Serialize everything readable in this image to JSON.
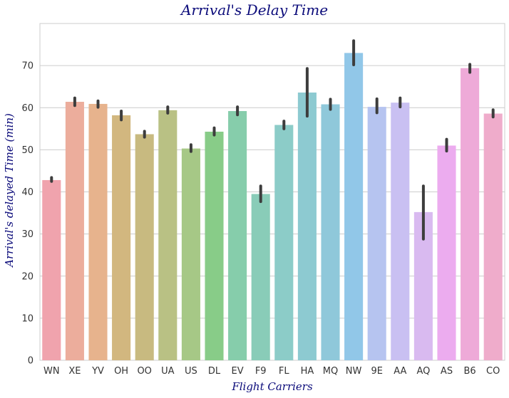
{
  "chart_data": {
    "type": "bar",
    "title": "Arrival's Delay Time",
    "xlabel": "Flight Carriers",
    "ylabel": "Arrival's delayed Time (min)",
    "ylim": [
      0,
      80
    ],
    "yticks": [
      0,
      10,
      20,
      30,
      40,
      50,
      60,
      70
    ],
    "grid": "horizontal",
    "categories": [
      "WN",
      "XE",
      "YV",
      "OH",
      "OO",
      "UA",
      "US",
      "DL",
      "EV",
      "F9",
      "FL",
      "HA",
      "MQ",
      "NW",
      "9E",
      "AA",
      "AQ",
      "AS",
      "B6",
      "CO"
    ],
    "values": [
      42.8,
      61.4,
      60.9,
      58.2,
      53.7,
      59.4,
      50.3,
      54.3,
      59.2,
      39.5,
      55.9,
      63.6,
      60.8,
      73.0,
      60.2,
      61.2,
      35.2,
      51.0,
      69.4,
      58.6
    ],
    "error_low": [
      42.5,
      60.5,
      60.1,
      57.1,
      53.0,
      58.7,
      49.6,
      53.5,
      58.3,
      37.7,
      55.0,
      58.0,
      59.6,
      70.2,
      58.8,
      60.2,
      28.8,
      49.7,
      68.4,
      57.8
    ],
    "error_high": [
      43.4,
      62.3,
      61.6,
      59.2,
      54.4,
      60.2,
      51.2,
      55.2,
      60.2,
      41.4,
      56.8,
      69.3,
      62.0,
      75.9,
      62.1,
      62.3,
      41.4,
      52.5,
      70.3,
      59.5
    ],
    "colors": [
      "#f0a3ad",
      "#ecad9c",
      "#e7b38d",
      "#d2b77f",
      "#c8ba80",
      "#b9c184",
      "#a6c886",
      "#88cc88",
      "#86cdab",
      "#89ccb8",
      "#8cccc8",
      "#8dcad1",
      "#8fc8da",
      "#91c7e8",
      "#b6c4f0",
      "#c9c0f2",
      "#d9baf0",
      "#ecacef",
      "#eeaad8",
      "#efaccb"
    ]
  }
}
